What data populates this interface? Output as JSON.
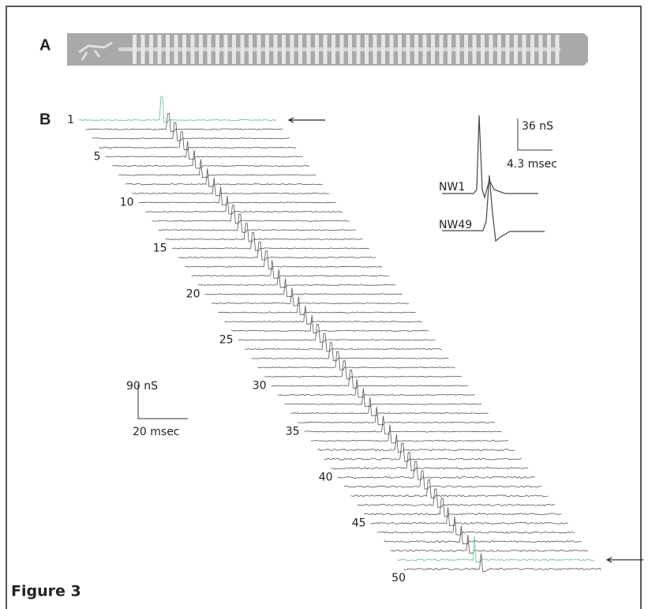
{
  "figure_label": "Figure 3",
  "panels": [
    {
      "label": "A"
    },
    {
      "label": "B",
      "trace_labels": [
        "1",
        "5",
        "10",
        "15",
        "20",
        "25",
        "30",
        "35",
        "40",
        "45",
        "50"
      ],
      "scale_bar": {
        "vertical": "90 nS",
        "horizontal": "20 msec"
      },
      "inset": {
        "traces": [
          "NW1",
          "NW49"
        ],
        "scale_bar": {
          "vertical": "36 nS",
          "horizontal": "4.3 msec"
        }
      }
    }
  ]
}
